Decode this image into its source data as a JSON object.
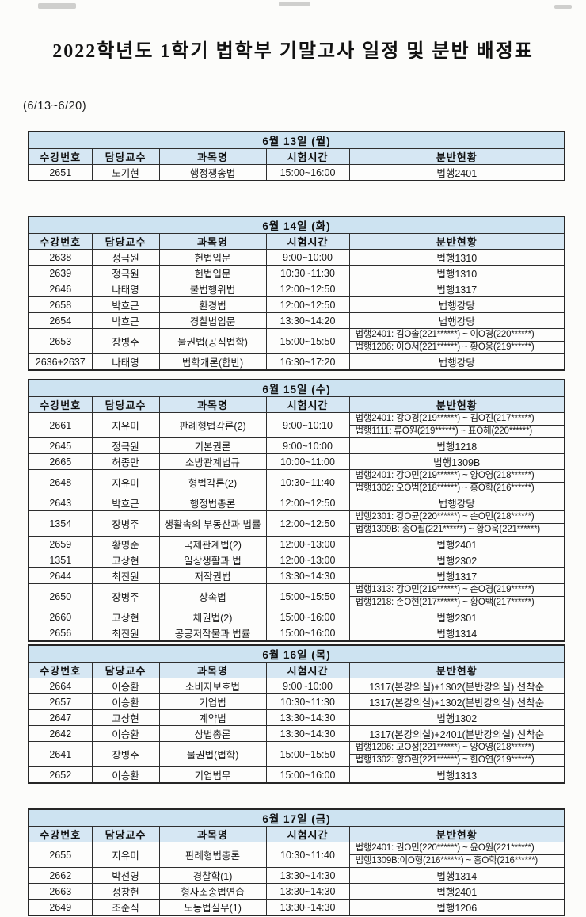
{
  "title": "2022학년도 1학기 법학부 기말고사 일정 및 분반 배정표",
  "date_range": "(6/13~6/20)",
  "columns": [
    "수강번호",
    "담당교수",
    "과목명",
    "시험시간",
    "분반현황"
  ],
  "colors": {
    "header_band": "#cde3f1",
    "header_band_light": "#d6e7f3"
  },
  "tables": [
    {
      "day": "6월 13일 (월)",
      "rows": [
        {
          "code": "2651",
          "prof": "노기현",
          "subject": "행정쟁송법",
          "time": "15:00~16:00",
          "assign": [
            "법행2401"
          ]
        }
      ]
    },
    {
      "day": "6월 14일 (화)",
      "rows": [
        {
          "code": "2638",
          "prof": "정극원",
          "subject": "헌법입문",
          "time": "9:00~10:00",
          "assign": [
            "법행1310"
          ]
        },
        {
          "code": "2639",
          "prof": "정극원",
          "subject": "헌법입문",
          "time": "10:30~11:30",
          "assign": [
            "법행1310"
          ]
        },
        {
          "code": "2646",
          "prof": "나태영",
          "subject": "불법행위법",
          "time": "12:00~12:50",
          "assign": [
            "법행1317"
          ]
        },
        {
          "code": "2658",
          "prof": "박효근",
          "subject": "환경법",
          "time": "12:00~12:50",
          "assign": [
            "법행강당"
          ]
        },
        {
          "code": "2654",
          "prof": "박효근",
          "subject": "경찰법입문",
          "time": "13:30~14:20",
          "assign": [
            "법행강당"
          ]
        },
        {
          "code": "2653",
          "prof": "장병주",
          "subject": "물권법(공직법학)",
          "time": "15:00~15:50",
          "assign": [
            "법행2401: 김O솔(221******) ~ 이O경(220******)",
            "법행1206: 이O서(221******) ~ 황O웅(219******)"
          ]
        },
        {
          "code": "2636+2637",
          "prof": "나태영",
          "subject": "법학개론(합반)",
          "time": "16:30~17:20",
          "assign": [
            "법행강당"
          ]
        }
      ]
    },
    {
      "day": "6월 15일 (수)",
      "rows": [
        {
          "code": "2661",
          "prof": "지유미",
          "subject": "판례형법각론(2)",
          "time": "9:00~10:10",
          "assign": [
            "법행2401: 강O경(219******) ~ 김O진(217******)",
            "법행1111: 류O원(219******) ~ 표O해(220******)"
          ]
        },
        {
          "code": "2645",
          "prof": "정극원",
          "subject": "기본권론",
          "time": "9:00~10:00",
          "assign": [
            "법행1218"
          ]
        },
        {
          "code": "2665",
          "prof": "허종만",
          "subject": "소방관계법규",
          "time": "10:00~11:00",
          "assign": [
            "법행1309B"
          ]
        },
        {
          "code": "2648",
          "prof": "지유미",
          "subject": "형법각론(2)",
          "time": "10:30~11:40",
          "assign": [
            "법행2401: 강O민(219******) ~ 양O영(218******)",
            "법행1302: 오O범(218******) ~ 홍O학(216******)"
          ]
        },
        {
          "code": "2643",
          "prof": "박효근",
          "subject": "행정법총론",
          "time": "12:00~12:50",
          "assign": [
            "법행강당"
          ]
        },
        {
          "code": "1354",
          "prof": "장병주",
          "subject": "생활속의 부동산과 법률",
          "time": "12:00~12:50",
          "assign": [
            "법행2301: 강O균(220******) ~ 손O민(218******)",
            "법행1309B: 송O필(221******) ~ 황O욱(221******)"
          ]
        },
        {
          "code": "2659",
          "prof": "황명준",
          "subject": "국제관계법(2)",
          "time": "12:00~13:00",
          "assign": [
            "법행2401"
          ]
        },
        {
          "code": "1351",
          "prof": "고상현",
          "subject": "일상생활과 법",
          "time": "12:00~13:00",
          "assign": [
            "법행2302"
          ]
        },
        {
          "code": "2644",
          "prof": "최진원",
          "subject": "저작권법",
          "time": "13:30~14:30",
          "assign": [
            "법행1317"
          ]
        },
        {
          "code": "2650",
          "prof": "장병주",
          "subject": "상속법",
          "time": "15:00~15:50",
          "assign": [
            "법행1313: 강O민(219******) ~ 손O경(219******)",
            "법행1218: 손O현(217******) ~ 황O백(217******)"
          ]
        },
        {
          "code": "2660",
          "prof": "고상현",
          "subject": "채권법(2)",
          "time": "15:00~16:00",
          "assign": [
            "법행2301"
          ]
        },
        {
          "code": "2656",
          "prof": "최진원",
          "subject": "공공저작물과 법률",
          "time": "15:00~16:00",
          "assign": [
            "법행1314"
          ]
        }
      ]
    },
    {
      "day": "6월 16일 (목)",
      "rows": [
        {
          "code": "2664",
          "prof": "이승환",
          "subject": "소비자보호법",
          "time": "9:00~10:00",
          "assign": [
            "1317(본강의실)+1302(분반강의실) 선착순"
          ]
        },
        {
          "code": "2657",
          "prof": "이승환",
          "subject": "기업법",
          "time": "10:30~11:30",
          "assign": [
            "1317(본강의실)+1302(분반강의실) 선착순"
          ]
        },
        {
          "code": "2647",
          "prof": "고상현",
          "subject": "계약법",
          "time": "13:30~14:30",
          "assign": [
            "법행1302"
          ]
        },
        {
          "code": "2642",
          "prof": "이승환",
          "subject": "상법총론",
          "time": "13:30~14:30",
          "assign": [
            "1317(본강의실)+2401(분반강의실) 선착순"
          ]
        },
        {
          "code": "2641",
          "prof": "장병주",
          "subject": "물권법(법학)",
          "time": "15:00~15:50",
          "assign": [
            "법행1206: 고O정(221******) ~ 양O영(218******)",
            "법행1302: 양O란(221******) ~ 한O연(219******)"
          ]
        },
        {
          "code": "2652",
          "prof": "이승환",
          "subject": "기업법무",
          "time": "15:00~16:00",
          "assign": [
            "법행1313"
          ]
        }
      ]
    },
    {
      "day": "6월 17일 (금)",
      "rows": [
        {
          "code": "2655",
          "prof": "지유미",
          "subject": "판례형법총론",
          "time": "10:30~11:40",
          "assign": [
            "법행2401: 권O민(220******) ~ 윤O원(221******)",
            "법행1309B:이O형(216******) ~ 홍O학(216******)"
          ]
        },
        {
          "code": "2662",
          "prof": "박선영",
          "subject": "경찰학(1)",
          "time": "13:30~14:30",
          "assign": [
            "법행1314"
          ]
        },
        {
          "code": "2663",
          "prof": "정창헌",
          "subject": "형사소송법연습",
          "time": "13:30~14:30",
          "assign": [
            "법행2401"
          ]
        },
        {
          "code": "2649",
          "prof": "조준식",
          "subject": "노동법실무(1)",
          "time": "13:30~14:30",
          "assign": [
            "법행1206"
          ]
        }
      ]
    }
  ]
}
